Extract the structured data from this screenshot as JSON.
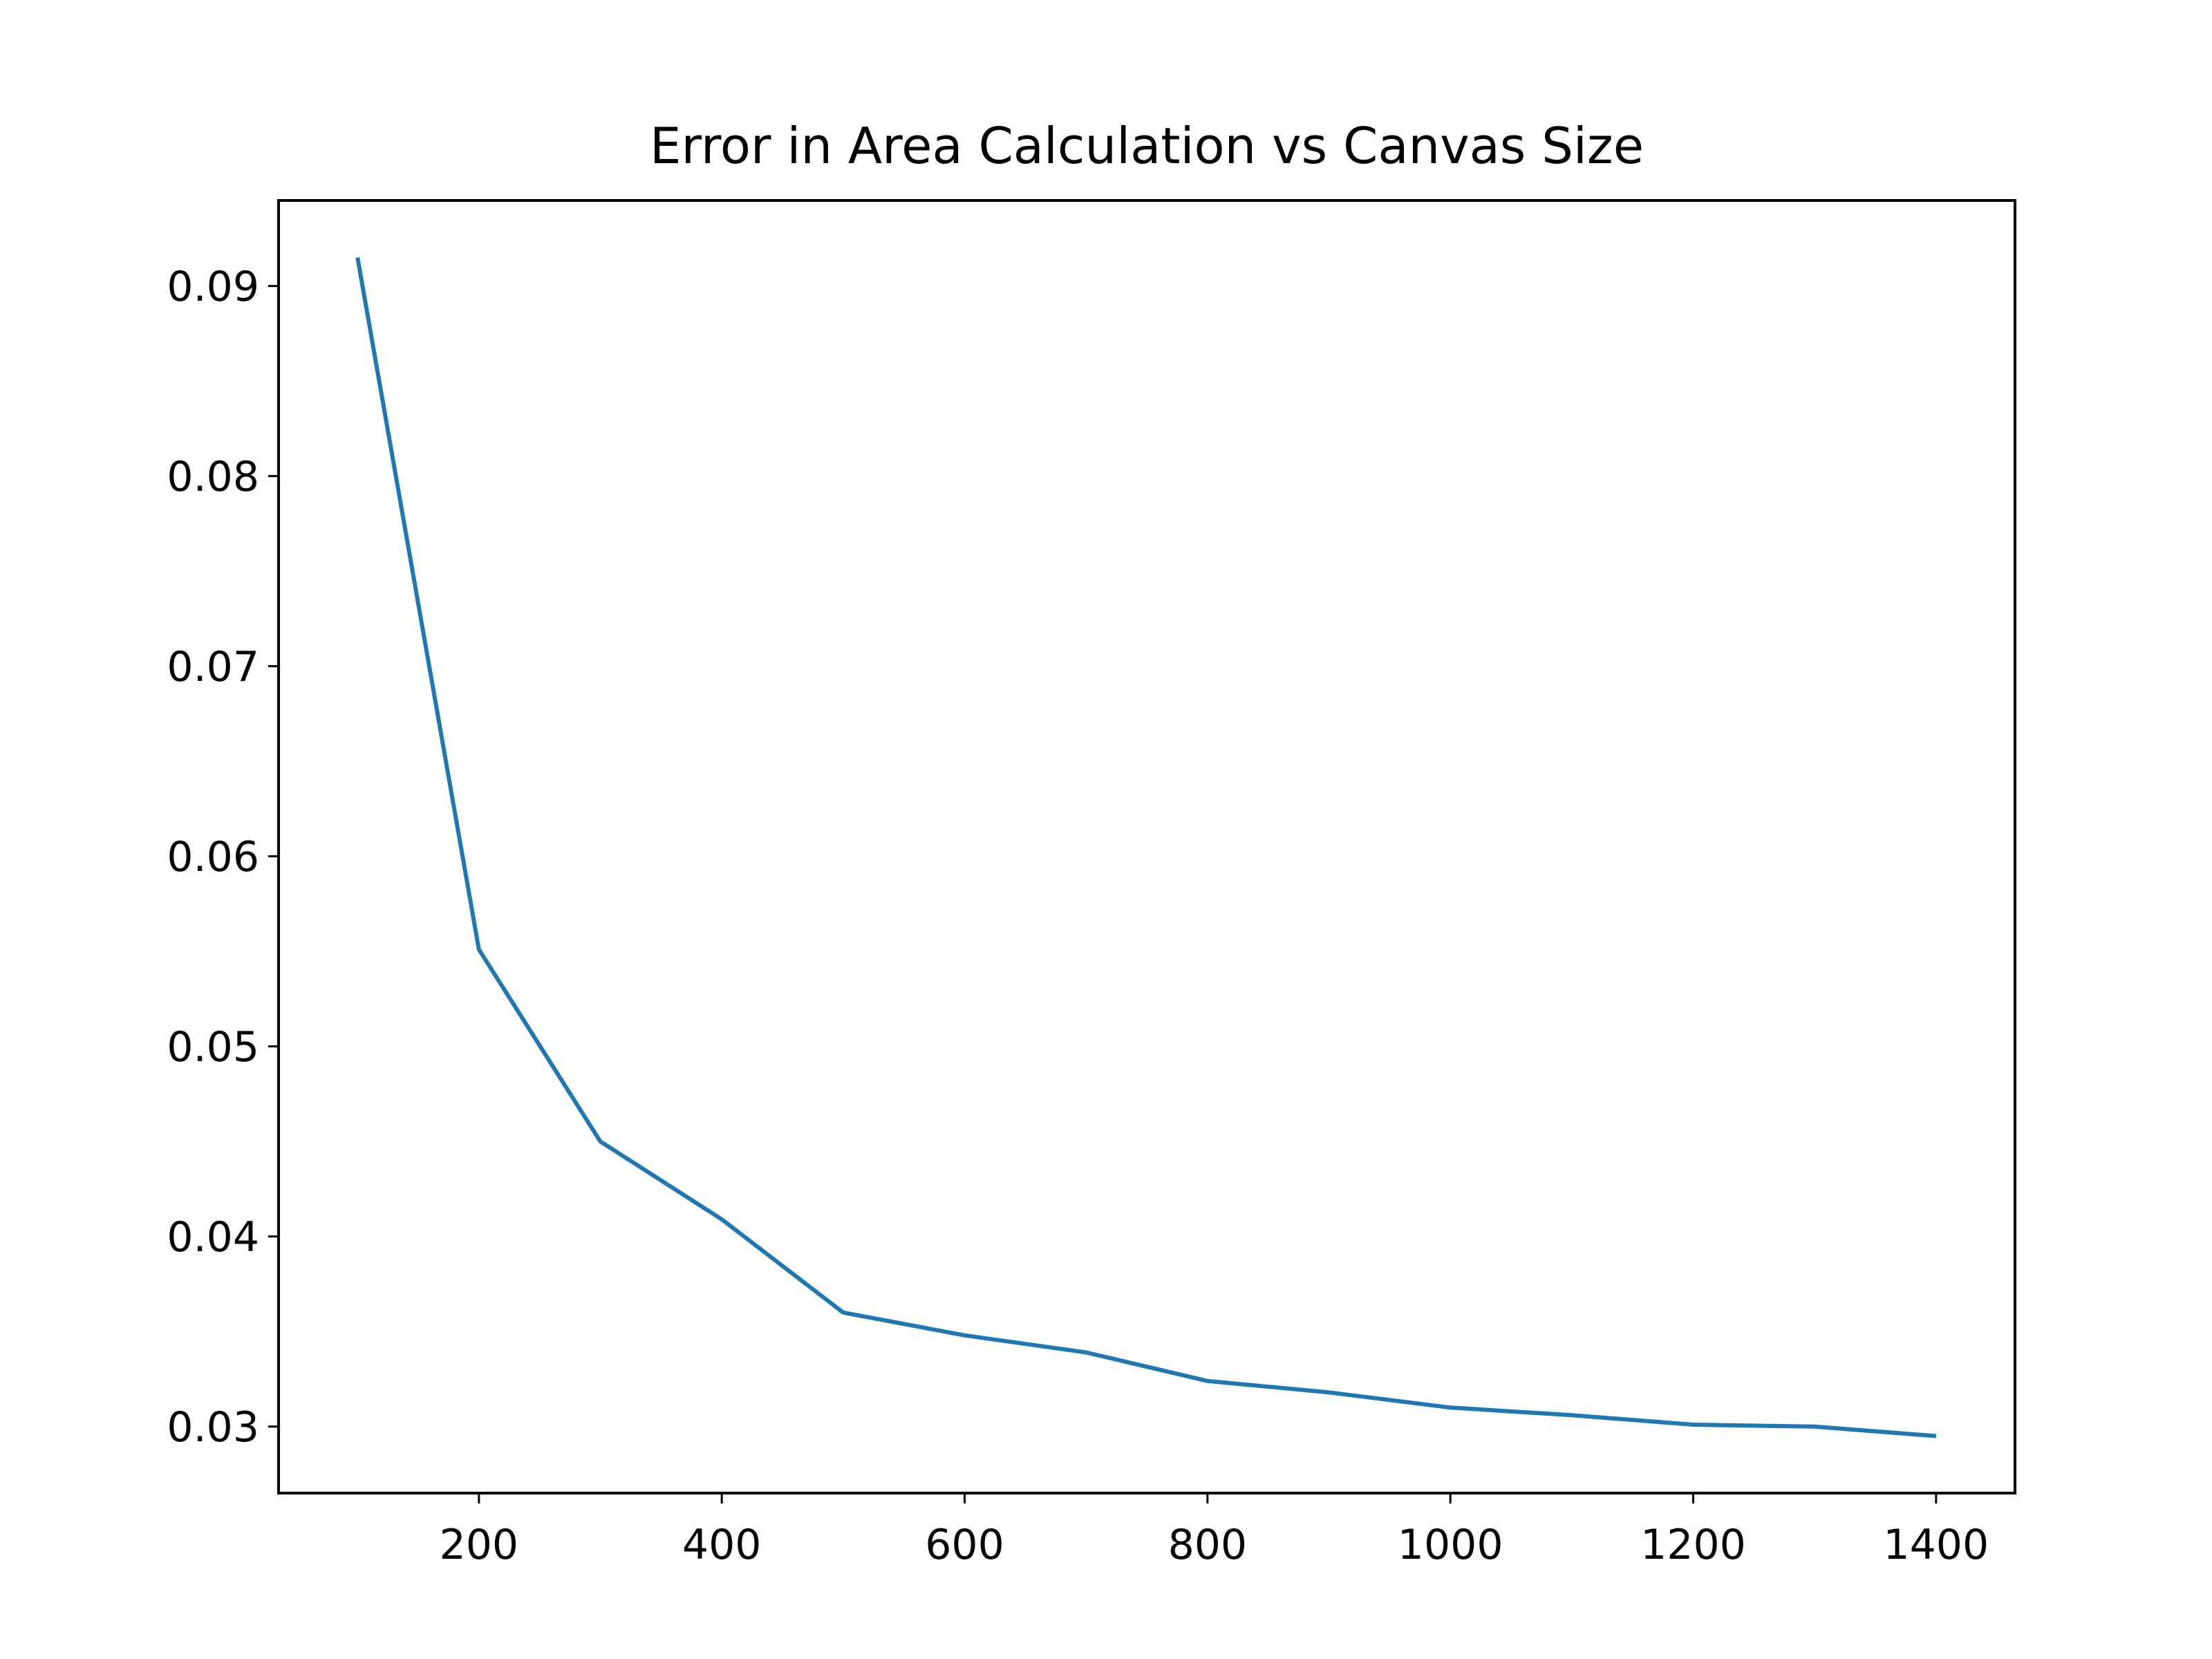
{
  "chart_data": {
    "type": "line",
    "title": "Error in Area Calculation vs Canvas Size",
    "xlabel": "",
    "ylabel": "",
    "xlim": [
      35,
      1465
    ],
    "ylim": [
      0.0265,
      0.0945
    ],
    "xticks": [
      200,
      400,
      600,
      800,
      1000,
      1200,
      1400
    ],
    "xtick_labels": [
      "200",
      "400",
      "600",
      "800",
      "1000",
      "1200",
      "1400"
    ],
    "yticks": [
      0.03,
      0.04,
      0.05,
      0.06,
      0.07,
      0.08,
      0.09
    ],
    "ytick_labels": [
      "0.03",
      "0.04",
      "0.05",
      "0.06",
      "0.07",
      "0.08",
      "0.09"
    ],
    "grid": false,
    "legend": "none",
    "series": [
      {
        "color": "#1f77b4",
        "x": [
          100,
          200,
          300,
          400,
          500,
          600,
          700,
          800,
          900,
          1000,
          1100,
          1200,
          1300,
          1400
        ],
        "y": [
          0.0915,
          0.0551,
          0.045,
          0.0409,
          0.036,
          0.0348,
          0.0339,
          0.0324,
          0.0318,
          0.031,
          0.0306,
          0.0301,
          0.03,
          0.0295
        ]
      }
    ]
  }
}
